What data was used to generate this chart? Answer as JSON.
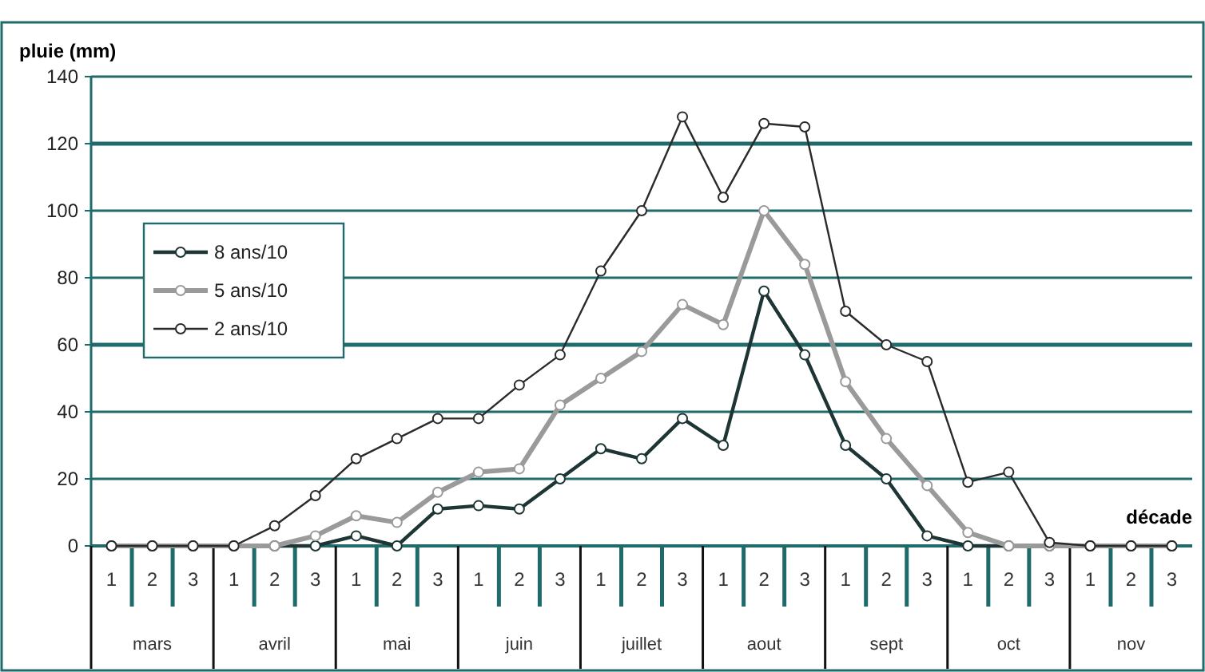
{
  "chart_data": {
    "type": "line",
    "ylabel": "pluie (mm)",
    "xlabel": "décade",
    "categories": [
      "1",
      "2",
      "3",
      "1",
      "2",
      "3",
      "1",
      "2",
      "3",
      "1",
      "2",
      "3",
      "1",
      "2",
      "3",
      "1",
      "2",
      "3",
      "1",
      "2",
      "3",
      "1",
      "2",
      "3",
      "1",
      "2",
      "3"
    ],
    "annotations": [
      "mars",
      "avril",
      "mai",
      "juin",
      "juillet",
      "aout",
      "sept",
      "oct",
      "nov"
    ],
    "series": [
      {
        "name": "8 ans/10",
        "color": "#1e3535",
        "values": [
          0,
          0,
          0,
          0,
          0,
          0,
          3,
          0,
          11,
          12,
          11,
          20,
          29,
          26,
          38,
          30,
          76,
          57,
          30,
          20,
          3,
          0,
          0,
          0,
          0,
          0,
          0
        ]
      },
      {
        "name": "5 ans/10",
        "color": "#9a9a9a",
        "values": [
          0,
          0,
          0,
          0,
          0,
          3,
          9,
          7,
          16,
          22,
          23,
          42,
          50,
          58,
          72,
          66,
          100,
          84,
          49,
          32,
          18,
          4,
          0,
          0,
          0,
          0,
          0
        ]
      },
      {
        "name": "2 ans/10",
        "color": "#2a2a2a",
        "values": [
          0,
          0,
          0,
          0,
          6,
          15,
          26,
          32,
          38,
          38,
          48,
          57,
          82,
          100,
          128,
          104,
          126,
          125,
          70,
          60,
          55,
          19,
          22,
          1,
          0,
          0,
          0
        ]
      }
    ],
    "ylim": [
      0,
      140
    ],
    "yticks": [
      0,
      20,
      40,
      60,
      80,
      100,
      120,
      140
    ],
    "grid": "y",
    "legend": "top left",
    "marker": "circle",
    "line_style": "solid"
  }
}
